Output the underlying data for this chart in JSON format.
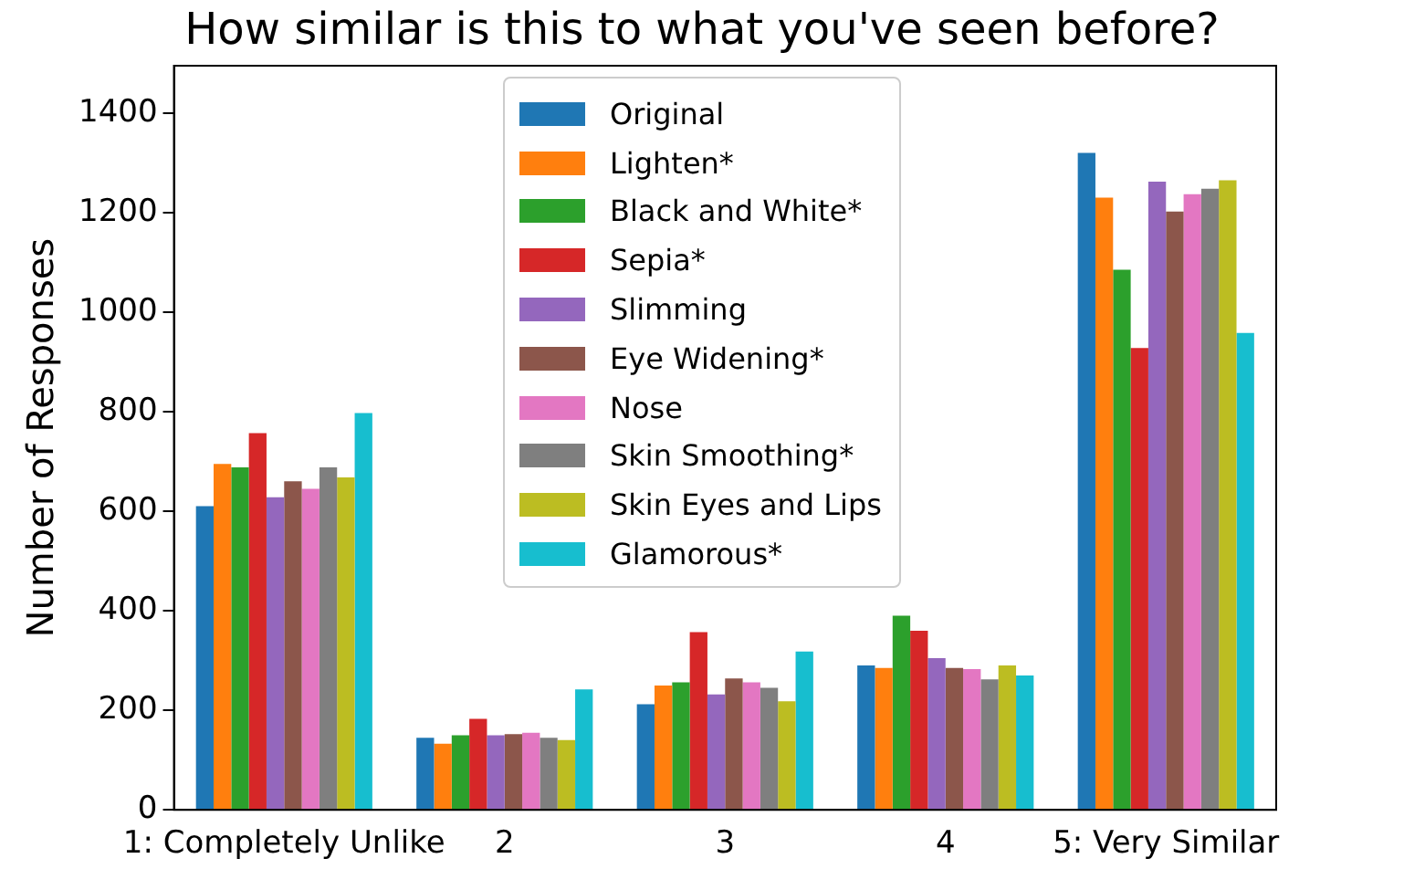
{
  "chart_data": {
    "type": "bar",
    "title": "How similar is this to what you've seen before?",
    "ylabel": "Number of Responses",
    "categories": [
      "1: Completely Unlike",
      "2",
      "3",
      "4",
      "5: Very Similar"
    ],
    "series": [
      {
        "name": "Original",
        "color": "#1f77b4",
        "values": [
          610,
          145,
          212,
          290,
          1320
        ]
      },
      {
        "name": "Lighten*",
        "color": "#ff7f0e",
        "values": [
          695,
          133,
          250,
          285,
          1230
        ]
      },
      {
        "name": "Black and White*",
        "color": "#2ca02c",
        "values": [
          688,
          150,
          256,
          390,
          1085
        ]
      },
      {
        "name": "Sepia*",
        "color": "#d62728",
        "values": [
          757,
          183,
          357,
          360,
          928
        ]
      },
      {
        "name": "Slimming",
        "color": "#9467bd",
        "values": [
          628,
          150,
          232,
          305,
          1262
        ]
      },
      {
        "name": "Eye Widening*",
        "color": "#8c564b",
        "values": [
          660,
          152,
          264,
          285,
          1202
        ]
      },
      {
        "name": "Nose",
        "color": "#e377c2",
        "values": [
          645,
          155,
          256,
          283,
          1237
        ]
      },
      {
        "name": "Skin Smoothing*",
        "color": "#7f7f7f",
        "values": [
          688,
          145,
          245,
          262,
          1248
        ]
      },
      {
        "name": "Skin Eyes and Lips",
        "color": "#bcbd22",
        "values": [
          668,
          140,
          218,
          290,
          1265
        ]
      },
      {
        "name": "Glamorous*",
        "color": "#17becf",
        "values": [
          797,
          242,
          318,
          270,
          958
        ]
      }
    ],
    "ylim": [
      0,
      1495
    ],
    "yticks": [
      0,
      200,
      400,
      600,
      800,
      1000,
      1200,
      1400
    ],
    "grid": false,
    "legend": "top"
  }
}
